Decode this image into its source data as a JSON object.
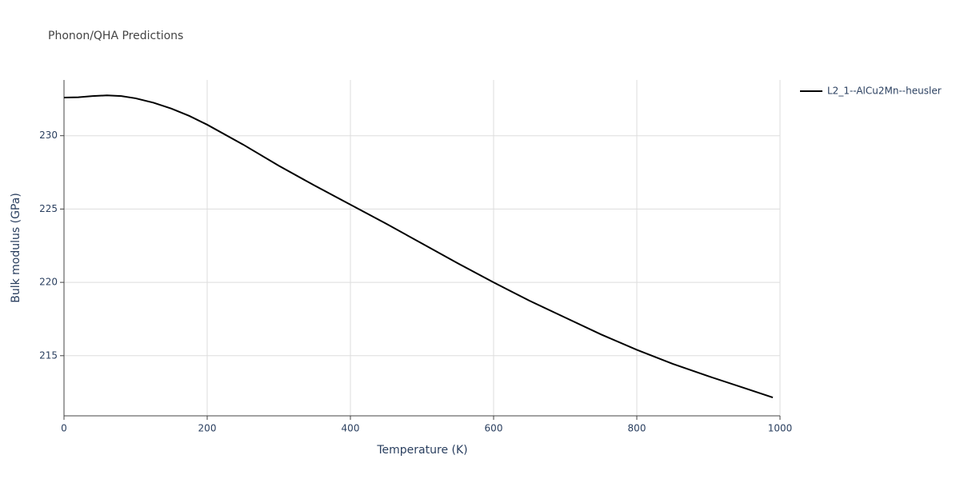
{
  "chart_data": {
    "type": "line",
    "title": "Phonon/QHA Predictions",
    "x_label": "Temperature (K)",
    "y_label": "Bulk modulus (GPa)",
    "x": [
      0,
      20,
      40,
      60,
      80,
      100,
      125,
      150,
      175,
      200,
      250,
      300,
      350,
      400,
      450,
      500,
      550,
      600,
      650,
      700,
      750,
      800,
      850,
      900,
      950,
      990
    ],
    "series": [
      {
        "name": "L2_1--AlCu2Mn--heusler",
        "color": "#000000",
        "values": [
          232.6,
          232.62,
          232.7,
          232.75,
          232.7,
          232.55,
          232.25,
          231.85,
          231.35,
          230.75,
          229.4,
          227.95,
          226.6,
          225.3,
          224.0,
          222.65,
          221.3,
          220.0,
          218.75,
          217.6,
          216.45,
          215.4,
          214.45,
          213.6,
          212.8,
          212.15
        ]
      }
    ],
    "xlim": [
      0,
      1000
    ],
    "xticks": [
      0,
      200,
      400,
      600,
      800,
      1000
    ],
    "ylim": [
      210.9,
      233.8
    ],
    "yticks": [
      215,
      220,
      225,
      230
    ],
    "grid": true,
    "legend": "top-right"
  }
}
